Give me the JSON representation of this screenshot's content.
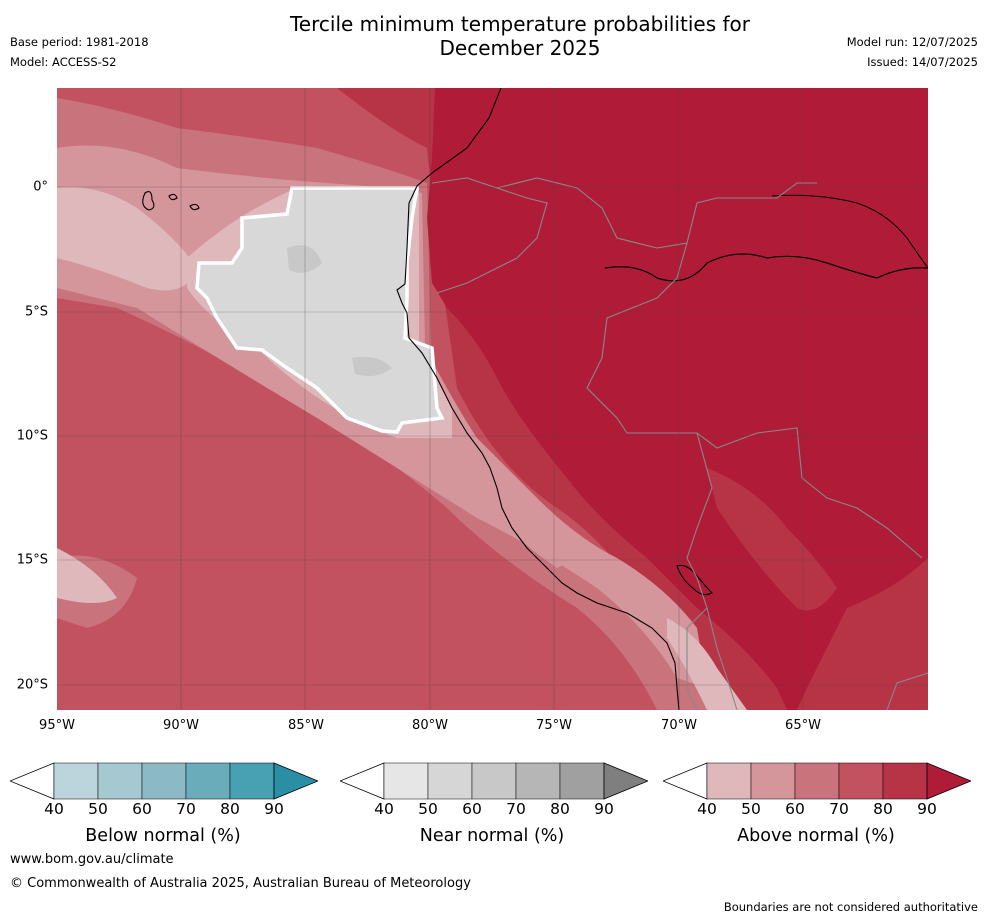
{
  "title": {
    "line1": "Tercile minimum temperature probabilities for",
    "line2": "December 2025"
  },
  "meta": {
    "base_period": "Base period: 1981-2018",
    "model": "Model: ACCESS-S2",
    "model_run": "Model run: 12/07/2025",
    "issued": "Issued: 14/07/2025"
  },
  "map": {
    "lat_labels": [
      "0°",
      "5°S",
      "10°S",
      "15°S",
      "20°S"
    ],
    "lon_labels": [
      "95°W",
      "90°W",
      "85°W",
      "80°W",
      "75°W",
      "70°W",
      "65°W"
    ],
    "colors": {
      "above_40": "#dfb8bc",
      "above_50": "#d4959b",
      "above_60": "#c9737c",
      "above_70": "#c25260",
      "above_80": "#b73447",
      "above_90": "#b01c37",
      "near_50": "#d8d8d8",
      "near_60": "#c8c8c8",
      "coast": "#000000",
      "border": "#888888",
      "near_outline": "#ffffff"
    }
  },
  "legends": {
    "below": {
      "title": "Below normal (%)",
      "ticks": [
        "40",
        "50",
        "60",
        "70",
        "80",
        "90"
      ],
      "colors": [
        "#ffffff",
        "#bcd5dc",
        "#a6c8d1",
        "#8bb9c5",
        "#6aacba",
        "#48a1b2",
        "#2a8ea4"
      ]
    },
    "near": {
      "title": "Near normal (%)",
      "ticks": [
        "40",
        "50",
        "60",
        "70",
        "80",
        "90"
      ],
      "colors": [
        "#ffffff",
        "#e6e6e6",
        "#d6d6d6",
        "#c8c8c8",
        "#b6b6b6",
        "#a0a0a0",
        "#7f7f7f"
      ]
    },
    "above": {
      "title": "Above normal (%)",
      "ticks": [
        "40",
        "50",
        "60",
        "70",
        "80",
        "90"
      ],
      "colors": [
        "#ffffff",
        "#dfb8bc",
        "#d4959b",
        "#c9737c",
        "#c25260",
        "#b73447",
        "#b01c37"
      ]
    }
  },
  "footer": {
    "url": "www.bom.gov.au/climate",
    "copyright": "© Commonwealth of Australia 2025, Australian Bureau of Meteorology",
    "note": "Boundaries are not considered authoritative"
  }
}
